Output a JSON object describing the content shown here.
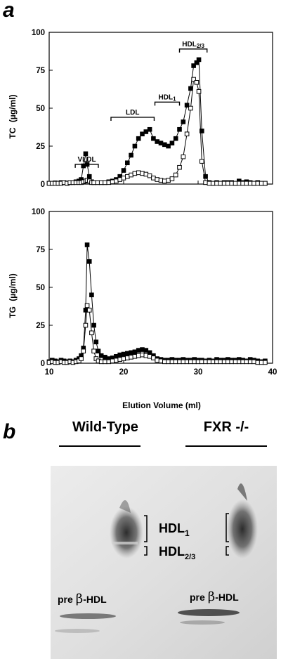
{
  "panels": {
    "a": "a",
    "b": "b"
  },
  "chart_data": [
    {
      "type": "line",
      "ylabel_main": "TC",
      "ylabel_unit": "(µg/ml)",
      "xlim": [
        10,
        40
      ],
      "ylim": [
        0,
        100
      ],
      "yticks": [
        "0",
        "25",
        "50",
        "75",
        "100"
      ],
      "xticks": [],
      "regions": [
        {
          "label": "VLDL",
          "sub": "",
          "x_start": 13.5,
          "x_end": 16.6,
          "y": 13
        },
        {
          "label": "LDL",
          "sub": "",
          "x_start": 18.3,
          "x_end": 24.1,
          "y": 44
        },
        {
          "label": "HDL",
          "sub": "1",
          "x_start": 24.2,
          "x_end": 27.5,
          "y": 54
        },
        {
          "label": "HDL",
          "sub": "2/3",
          "x_start": 27.5,
          "x_end": 31.2,
          "y": 89
        }
      ],
      "series": [
        {
          "marker": "filled-square",
          "color": "#000000",
          "x": [
            10,
            10.4,
            10.8,
            11.2,
            11.6,
            12,
            12.4,
            12.8,
            13.2,
            13.6,
            14,
            14.3,
            14.6,
            14.9,
            15.1,
            15.4,
            15.7,
            16,
            16.5,
            17,
            17.5,
            18,
            18.5,
            19,
            19.5,
            20,
            20.5,
            21,
            21.5,
            22,
            22.5,
            23,
            23.5,
            24,
            24.5,
            25,
            25.5,
            26,
            26.5,
            27,
            27.5,
            28,
            28.5,
            29,
            29.4,
            29.8,
            30.1,
            30.5,
            31,
            31.5,
            32,
            32.5,
            33,
            33.5,
            34,
            34.5,
            35,
            35.5,
            36,
            36.5,
            37,
            37.5,
            38,
            38.5,
            39
          ],
          "values": [
            0.5,
            0.5,
            0.8,
            0.5,
            1,
            1,
            0.5,
            1,
            1,
            1.5,
            2,
            3,
            12,
            20,
            13,
            5,
            1.5,
            1,
            1,
            1,
            1,
            1.5,
            2,
            3,
            5,
            9,
            14,
            19,
            25,
            30,
            33,
            34.5,
            36,
            30,
            28,
            27,
            26,
            25,
            27,
            30,
            36,
            41,
            52,
            63,
            78,
            80,
            82,
            35,
            5,
            1,
            0.5,
            1,
            0.5,
            1,
            1,
            1,
            0.5,
            2,
            1,
            1.5,
            1,
            0.5,
            1,
            0.5,
            0.5
          ]
        },
        {
          "marker": "open-square",
          "color": "#000000",
          "x": [
            10,
            10.4,
            10.8,
            11.2,
            11.6,
            12,
            12.4,
            12.8,
            13.2,
            13.6,
            14,
            14.3,
            14.6,
            14.9,
            15.1,
            15.4,
            15.7,
            16,
            16.5,
            17,
            17.5,
            18,
            18.5,
            19,
            19.5,
            20,
            20.5,
            21,
            21.5,
            22,
            22.5,
            23,
            23.5,
            24,
            24.5,
            25,
            25.5,
            26,
            26.5,
            27,
            27.5,
            28,
            28.5,
            29,
            29.4,
            29.8,
            30.1,
            30.5,
            31,
            31.5,
            32,
            32.5,
            33,
            33.5,
            34,
            34.5,
            35,
            35.5,
            36,
            36.5,
            37,
            37.5,
            38,
            38.5,
            39
          ],
          "values": [
            0.5,
            0.5,
            0.5,
            0.5,
            0.5,
            1,
            0.5,
            1,
            1,
            1,
            1,
            1,
            1.5,
            2,
            2.5,
            2,
            1,
            1,
            1,
            1,
            1,
            1,
            1.5,
            2,
            3,
            4,
            5,
            6,
            7,
            7.5,
            7,
            6.5,
            5.5,
            4,
            3,
            2.5,
            2,
            2.5,
            3.5,
            6,
            11,
            18,
            33,
            50,
            69,
            67,
            61,
            15,
            1,
            0.5,
            0.5,
            0.5,
            0.5,
            0.5,
            0.5,
            0.5,
            0.5,
            0.5,
            0.5,
            0.5,
            0.5,
            0.5,
            0.5,
            0.5,
            0.5
          ]
        }
      ]
    },
    {
      "type": "line",
      "ylabel_main": "TG",
      "ylabel_unit": "(µg/ml)",
      "xlabel": "Elution Volume (ml)",
      "xlim": [
        10,
        40
      ],
      "ylim": [
        0,
        100
      ],
      "yticks": [
        "0",
        "25",
        "50",
        "75",
        "100"
      ],
      "xticks": [
        "10",
        "20",
        "30",
        "40"
      ],
      "series": [
        {
          "marker": "filled-square",
          "color": "#000000",
          "x": [
            10,
            10.4,
            10.8,
            11.2,
            11.6,
            12,
            12.4,
            12.8,
            13.2,
            13.6,
            14,
            14.3,
            14.6,
            14.9,
            15.1,
            15.4,
            15.7,
            16,
            16.3,
            16.6,
            17,
            17.5,
            18,
            18.5,
            19,
            19.5,
            20,
            20.5,
            21,
            21.5,
            22,
            22.5,
            23,
            23.5,
            24,
            24.5,
            25,
            25.5,
            26,
            26.5,
            27,
            27.5,
            28,
            28.5,
            29,
            29.5,
            30,
            30.5,
            31,
            31.5,
            32,
            32.5,
            33,
            33.5,
            34,
            34.5,
            35,
            35.5,
            36,
            36.5,
            37,
            37.5,
            38,
            38.5,
            39
          ],
          "values": [
            1,
            2,
            1.5,
            1,
            2,
            1.5,
            1,
            1.5,
            1,
            2,
            3,
            5,
            10,
            35,
            78,
            67,
            45,
            25,
            14,
            8,
            5,
            4,
            3,
            3.5,
            4.5,
            5.5,
            6,
            6.5,
            7,
            7.5,
            8.5,
            9,
            8.5,
            7,
            5,
            3,
            2.5,
            2,
            2,
            2.5,
            2,
            2,
            2.5,
            2,
            2,
            2.5,
            2,
            2,
            1.5,
            2,
            1.5,
            2.5,
            2,
            2,
            2.5,
            2,
            2,
            2.5,
            2,
            1.5,
            2.5,
            2,
            1.5,
            1,
            1.5
          ]
        },
        {
          "marker": "open-square",
          "color": "#000000",
          "x": [
            10,
            10.4,
            10.8,
            11.2,
            11.6,
            12,
            12.4,
            12.8,
            13.2,
            13.6,
            14,
            14.3,
            14.6,
            14.9,
            15.1,
            15.4,
            15.7,
            16,
            16.3,
            16.6,
            17,
            17.5,
            18,
            18.5,
            19,
            19.5,
            20,
            20.5,
            21,
            21.5,
            22,
            22.5,
            23,
            23.5,
            24,
            24.5,
            25,
            25.5,
            26,
            26.5,
            27,
            27.5,
            28,
            28.5,
            29,
            29.5,
            30,
            30.5,
            31,
            31.5,
            32,
            32.5,
            33,
            33.5,
            34,
            34.5,
            35,
            35.5,
            36,
            36.5,
            37,
            37.5,
            38,
            38.5,
            39
          ],
          "values": [
            0.5,
            1,
            0.5,
            0.5,
            1,
            0.5,
            0.5,
            1,
            0.5,
            1,
            1.5,
            3,
            8,
            25,
            38,
            35,
            20,
            8,
            3,
            1.5,
            1,
            1,
            1,
            1.5,
            2,
            2.5,
            3,
            3.5,
            4,
            4.5,
            5,
            5.5,
            5,
            4.5,
            3.5,
            2,
            1.5,
            1,
            1,
            1,
            1,
            1,
            1,
            1,
            1,
            1,
            1,
            1,
            1,
            1,
            1,
            1,
            1,
            1,
            1,
            1,
            1,
            1,
            1,
            1,
            1,
            1,
            0.5,
            0.5,
            0.5
          ]
        }
      ]
    }
  ],
  "gel": {
    "wild_type_label": "Wild-Type",
    "fxr_label": "FXR -/-",
    "hdl1_label": "HDL",
    "hdl1_sub": "1",
    "hdl23_label": "HDL",
    "hdl23_sub": "2/3",
    "preb_left_pre": "pre",
    "preb_left_beta": "β",
    "preb_left_suffix": "-HDL",
    "preb_right_pre": "pre",
    "preb_right_beta": "β",
    "preb_right_suffix": "-HDL"
  }
}
